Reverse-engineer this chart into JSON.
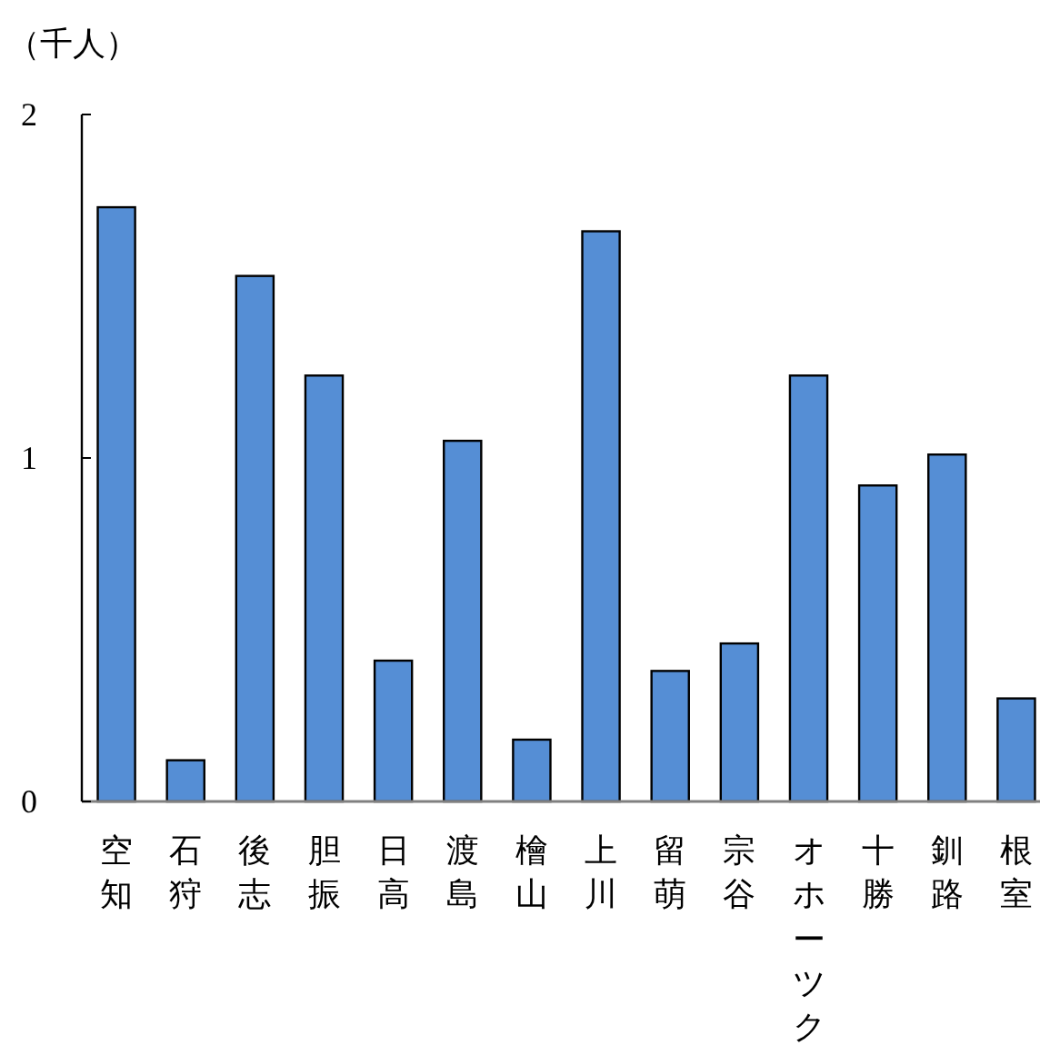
{
  "chart_data": {
    "type": "bar",
    "ylabel": "（千人）",
    "categories": [
      "空知",
      "石狩",
      "後志",
      "胆振",
      "日高",
      "渡島",
      "檜山",
      "上川",
      "留萌",
      "宗谷",
      "オホーツク",
      "十勝",
      "釧路",
      "根室"
    ],
    "values": [
      1.73,
      0.12,
      1.53,
      1.24,
      0.41,
      1.05,
      0.18,
      1.66,
      0.38,
      0.46,
      1.24,
      0.92,
      1.01,
      0.3
    ],
    "color": "#558ed5",
    "ylim": [
      0,
      2
    ],
    "yticks": [
      0,
      1,
      2
    ],
    "grid": false
  }
}
